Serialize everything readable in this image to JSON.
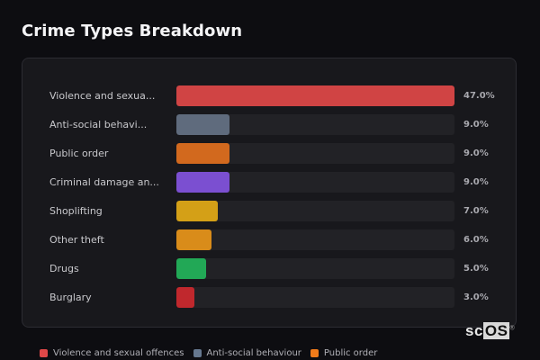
{
  "header": {
    "title": "Crime Types Breakdown"
  },
  "chart_data": {
    "type": "bar",
    "orientation": "horizontal",
    "title": "Crime Types Breakdown",
    "xlabel": "",
    "ylabel": "",
    "xlim": [
      0,
      47
    ],
    "grid": false,
    "legend_position": "bottom",
    "categories": [
      "Violence and sexual offences",
      "Anti-social behaviour",
      "Public order",
      "Criminal damage and arson",
      "Shoplifting",
      "Other theft",
      "Drugs",
      "Burglary"
    ],
    "display_labels": [
      "Violence and sexua...",
      "Anti-social behavi...",
      "Public order",
      "Criminal damage an...",
      "Shoplifting",
      "Other theft",
      "Drugs",
      "Burglary"
    ],
    "values": [
      47.0,
      9.0,
      9.0,
      9.0,
      7.0,
      6.0,
      5.0,
      3.0
    ],
    "value_labels": [
      "47.0%",
      "9.0%",
      "9.0%",
      "9.0%",
      "7.0%",
      "6.0%",
      "5.0%",
      "3.0%"
    ],
    "colors": [
      "#d04444",
      "#5f6b7d",
      "#d2691e",
      "#7b4fd1",
      "#d4a017",
      "#d98c1a",
      "#22a856",
      "#c0282d"
    ]
  },
  "legend": {
    "items": [
      {
        "label": "Violence and sexual offences",
        "color": "#e04848"
      },
      {
        "label": "Anti-social behaviour",
        "color": "#66788f"
      },
      {
        "label": "Public order",
        "color": "#f07b1a"
      }
    ]
  },
  "watermark": {
    "prefix": "sc",
    "boxed": "OS",
    "mark": "®"
  }
}
